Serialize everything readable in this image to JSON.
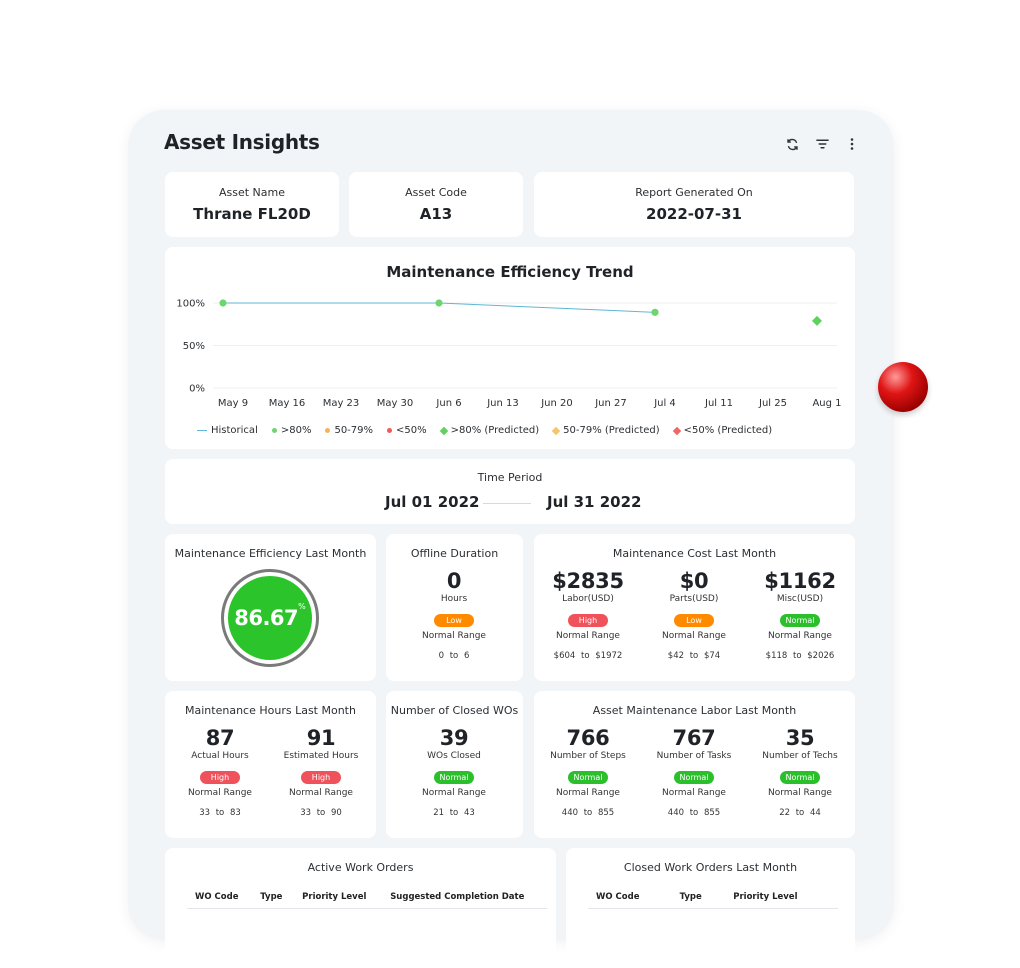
{
  "header": {
    "title": "Asset Insights",
    "icons": [
      "refresh-icon",
      "filter-icon",
      "more-vertical-icon"
    ]
  },
  "asset": {
    "name_label": "Asset Name",
    "name": "Thrane FL20D",
    "code_label": "Asset Code",
    "code": "A13",
    "report_label": "Report Generated On",
    "report_date": "2022-07-31"
  },
  "trend": {
    "title": "Maintenance Efficiency Trend",
    "y_ticks": [
      "100%",
      "50%",
      "0%"
    ],
    "x_ticks": [
      "May 9",
      "May 16",
      "May 23",
      "May 30",
      "Jun 6",
      "Jun 13",
      "Jun 20",
      "Jun 27",
      "Jul 4",
      "Jul 11",
      "Jul 25",
      "Aug 1"
    ],
    "legend": [
      "Historical",
      ">80%",
      "50-79%",
      "<50%",
      ">80% (Predicted)",
      "50-79% (Predicted)",
      "<50% (Predicted)"
    ],
    "colors": {
      "historical": "#5fb6d6",
      "good": "#6fd56f",
      "mid": "#f5b25b",
      "bad": "#f05a5a",
      "good_pred": "#5fd15f",
      "mid_pred": "#f5c56a",
      "bad_pred": "#f06565"
    }
  },
  "chart_data": {
    "type": "line",
    "title": "Maintenance Efficiency Trend",
    "categories": [
      "May 9",
      "May 16",
      "May 23",
      "May 30",
      "Jun 6",
      "Jun 13",
      "Jun 20",
      "Jun 27",
      "Jul 4",
      "Jul 11",
      "Jul 25",
      "Aug 1"
    ],
    "series": [
      {
        "name": "Historical",
        "points": [
          {
            "x": "May 9",
            "y": 100
          },
          {
            "x": "Jun 6",
            "y": 100
          },
          {
            "x": "Jul 4",
            "y": 89
          }
        ]
      },
      {
        "name": ">80% (Predicted)",
        "points": [
          {
            "x": "Aug 1",
            "y": 79
          }
        ]
      }
    ],
    "ylim": [
      0,
      100
    ],
    "grid": true,
    "legend": "bottom"
  },
  "period": {
    "label": "Time Period",
    "start": "Jul 01 2022",
    "end": "Jul 31 2022"
  },
  "efficiency": {
    "title": "Maintenance Efficiency Last Month",
    "value": "86.67",
    "unit": "%",
    "level": 0.8667
  },
  "offline": {
    "title": "Offline Duration",
    "value": "0",
    "unit": "Hours",
    "status": "Low",
    "range_label": "Normal Range",
    "min": "0",
    "max": "6"
  },
  "cost": {
    "title": "Maintenance Cost Last Month",
    "items": [
      {
        "value": "$2835",
        "unit": "Labor(USD)",
        "status": "High",
        "range_label": "Normal Range",
        "min": "$604",
        "max": "$1972"
      },
      {
        "value": "$0",
        "unit": "Parts(USD)",
        "status": "Low",
        "range_label": "Normal Range",
        "min": "$42",
        "max": "$74"
      },
      {
        "value": "$1162",
        "unit": "Misc(USD)",
        "status": "Normal",
        "range_label": "Normal Range",
        "min": "$118",
        "max": "$2026"
      }
    ]
  },
  "hours": {
    "title": "Maintenance Hours Last Month",
    "items": [
      {
        "value": "87",
        "unit": "Actual Hours",
        "status": "High",
        "range_label": "Normal Range",
        "min": "33",
        "max": "83"
      },
      {
        "value": "91",
        "unit": "Estimated Hours",
        "status": "High",
        "range_label": "Normal Range",
        "min": "33",
        "max": "90"
      }
    ]
  },
  "closed": {
    "title": "Number of Closed WOs",
    "value": "39",
    "unit": "WOs Closed",
    "status": "Normal",
    "range_label": "Normal Range",
    "min": "21",
    "max": "43"
  },
  "labor": {
    "title": "Asset Maintenance Labor Last Month",
    "items": [
      {
        "value": "766",
        "unit": "Number of Steps",
        "status": "Normal",
        "range_label": "Normal Range",
        "min": "440",
        "max": "855"
      },
      {
        "value": "767",
        "unit": "Number of Tasks",
        "status": "Normal",
        "range_label": "Normal Range",
        "min": "440",
        "max": "855"
      },
      {
        "value": "35",
        "unit": "Number of Techs",
        "status": "Normal",
        "range_label": "Normal Range",
        "min": "22",
        "max": "44"
      }
    ]
  },
  "range_sep": "to",
  "active_orders": {
    "title": "Active Work Orders",
    "columns": [
      "WO Code",
      "Type",
      "Priority Level",
      "Suggested Completion Date"
    ]
  },
  "closed_orders": {
    "title": "Closed Work Orders Last Month",
    "columns": [
      "WO Code",
      "Type",
      "Priority Level"
    ]
  }
}
